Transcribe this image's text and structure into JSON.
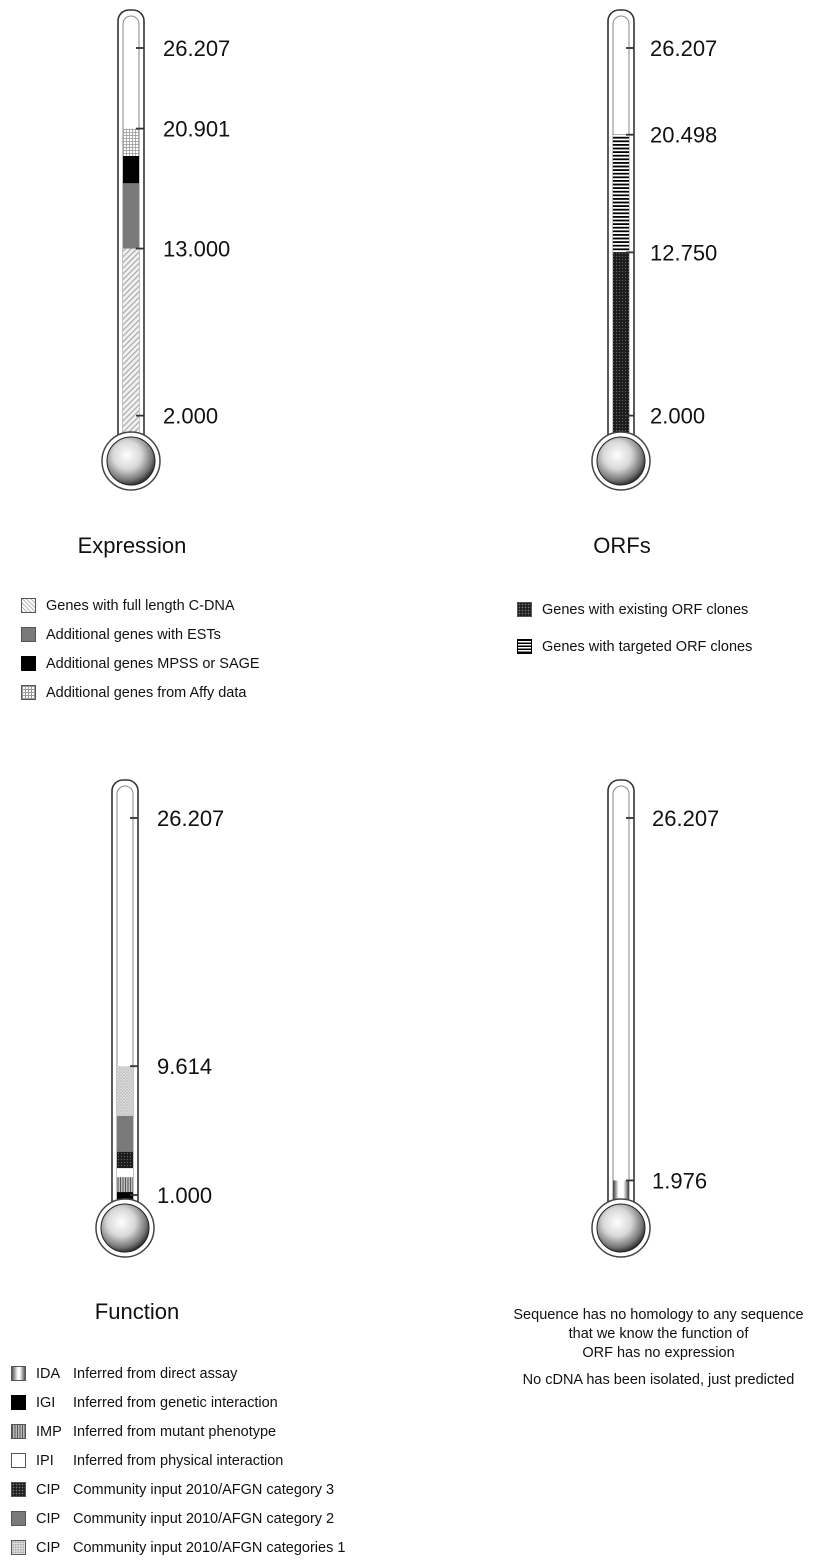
{
  "colors": {
    "ink": "#111111",
    "mid_gray": "#7a7a7a",
    "black": "#000000"
  },
  "max_value": 26.207,
  "thermometers": {
    "expression": {
      "title": "Expression",
      "ticks": [
        26.207,
        20.901,
        13.0,
        2.0
      ],
      "tick_labels": [
        "26.207",
        "20.901",
        "13.000",
        "2.000"
      ],
      "segments": [
        {
          "from": 0,
          "to": 13.0,
          "fill": "diag"
        },
        {
          "from": 13.0,
          "to": 17.3,
          "fill": "mid"
        },
        {
          "from": 17.3,
          "to": 19.1,
          "fill": "black"
        },
        {
          "from": 19.1,
          "to": 20.9,
          "fill": "grid"
        }
      ],
      "legend": [
        {
          "swatch": "diag",
          "text": "Genes with full length C-DNA"
        },
        {
          "swatch": "mid",
          "text": "Additional genes with ESTs"
        },
        {
          "swatch": "black",
          "text": "Additional genes MPSS or SAGE"
        },
        {
          "swatch": "grid",
          "text": "Additional genes from Affy data"
        }
      ]
    },
    "orfs": {
      "title": "ORFs",
      "ticks": [
        26.207,
        20.498,
        12.75,
        2.0
      ],
      "tick_labels": [
        "26.207",
        "20.498",
        "12.750",
        "2.000"
      ],
      "segments": [
        {
          "from": 0,
          "to": 12.75,
          "fill": "dots"
        },
        {
          "from": 12.75,
          "to": 20.498,
          "fill": "hstr"
        }
      ],
      "legend": [
        {
          "swatch": "dots",
          "text": "Genes with existing ORF clones"
        },
        {
          "swatch": "hstr",
          "text": "Genes with targeted ORF clones"
        }
      ]
    },
    "function": {
      "title": "Function",
      "ticks": [
        26.207,
        9.614,
        1.0
      ],
      "tick_labels": [
        "26.207",
        "9.614",
        "1.000"
      ],
      "segments": [
        {
          "from": 0,
          "to": 0.5,
          "fill": "ida"
        },
        {
          "from": 0.5,
          "to": 1.2,
          "fill": "black"
        },
        {
          "from": 1.2,
          "to": 2.2,
          "fill": "vstr"
        },
        {
          "from": 2.2,
          "to": 2.8,
          "fill": "white"
        },
        {
          "from": 2.8,
          "to": 3.9,
          "fill": "dots"
        },
        {
          "from": 3.9,
          "to": 6.3,
          "fill": "mid"
        },
        {
          "from": 6.3,
          "to": 9.614,
          "fill": "speck"
        }
      ],
      "legend": [
        {
          "swatch": "ida",
          "code": "IDA",
          "text": "Inferred from direct assay"
        },
        {
          "swatch": "black",
          "code": "IGI",
          "text": "Inferred from genetic interaction"
        },
        {
          "swatch": "vstr",
          "code": "IMP",
          "text": "Inferred from mutant phenotype"
        },
        {
          "swatch": "white",
          "code": "IPI",
          "text": "Inferred from physical interaction"
        },
        {
          "swatch": "dots",
          "code": "CIP",
          "text": "Community input 2010/AFGN category 3"
        },
        {
          "swatch": "mid",
          "code": "CIP",
          "text": "Community input 2010/AFGN category 2"
        },
        {
          "swatch": "speck",
          "code": "CIP",
          "text": "Community input 2010/AFGN categories 1"
        }
      ]
    },
    "homology": {
      "ticks": [
        26.207,
        1.976
      ],
      "tick_labels": [
        "26.207",
        "1.976"
      ],
      "segments": [
        {
          "from": 0,
          "to": 1.976,
          "fill": "ida"
        }
      ],
      "notes": [
        "Sequence has no homology to any sequence",
        "that we know the function of",
        "ORF has no expression",
        "No cDNA has been isolated, just predicted"
      ]
    }
  }
}
